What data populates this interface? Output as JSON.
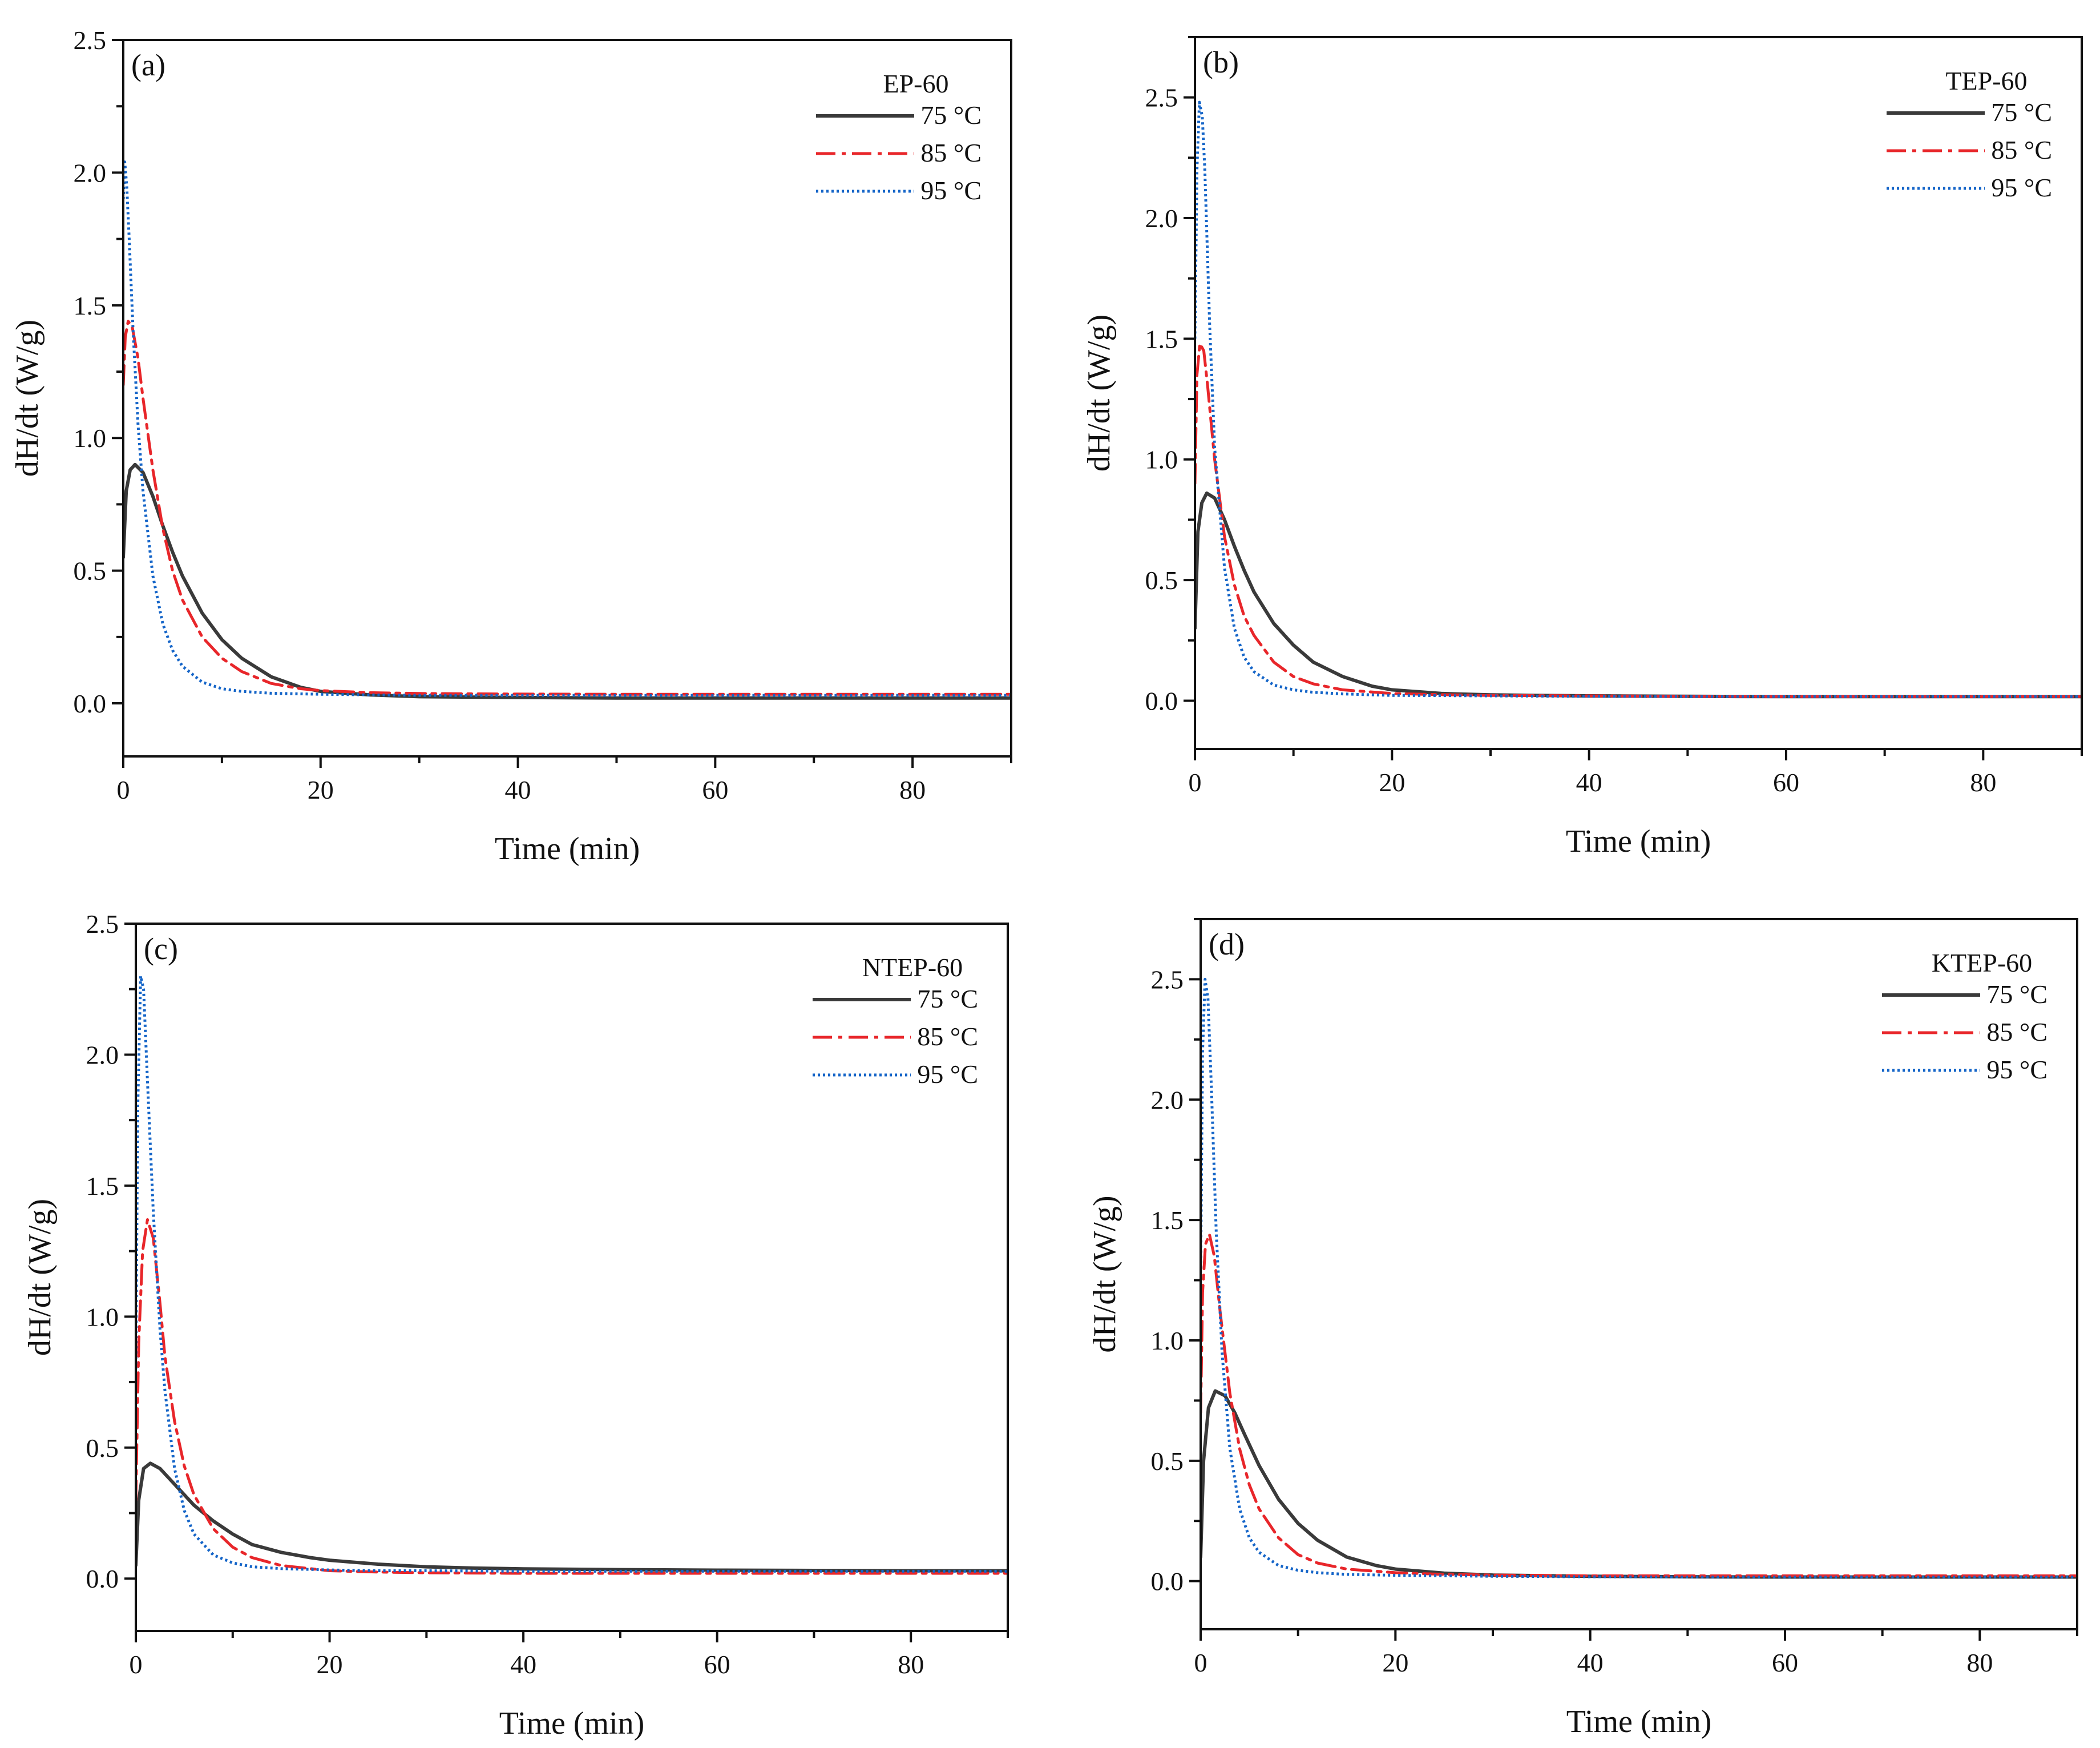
{
  "colors": {
    "t75": "#3a3a3a",
    "t85": "#e8262a",
    "t95": "#1565c8",
    "axis": "#111111"
  },
  "chart_data": [
    {
      "type": "line",
      "panel_label": "(a)",
      "legend_title": "EP-60",
      "xlabel": "Time (min)",
      "ylabel": "dH/dt (W/g)",
      "xlim": [
        0,
        90
      ],
      "ylim": [
        -0.2,
        2.5
      ],
      "xticks": [
        0,
        20,
        40,
        60,
        80
      ],
      "yticks": [
        0.0,
        0.5,
        1.0,
        1.5,
        2.0,
        2.5
      ],
      "ytick_labels": [
        "0.0",
        "0.5",
        "1.0",
        "1.5",
        "2.0",
        "2.5"
      ],
      "series": [
        {
          "name": "75 °C",
          "style": "solid",
          "color": "#3a3a3a",
          "x": [
            0,
            0.3,
            0.7,
            1.2,
            2,
            3,
            4,
            5,
            6,
            8,
            10,
            12,
            15,
            18,
            20,
            25,
            30,
            40,
            50,
            60,
            70,
            80,
            90
          ],
          "y": [
            0.55,
            0.8,
            0.88,
            0.9,
            0.87,
            0.78,
            0.67,
            0.57,
            0.48,
            0.34,
            0.24,
            0.17,
            0.1,
            0.06,
            0.045,
            0.032,
            0.025,
            0.022,
            0.02,
            0.02,
            0.02,
            0.02,
            0.02
          ]
        },
        {
          "name": "85 °C",
          "style": "dashdot",
          "color": "#e8262a",
          "x": [
            0,
            0.2,
            0.5,
            0.9,
            1.5,
            2,
            3,
            4,
            5,
            6,
            8,
            10,
            12,
            15,
            18,
            20,
            25,
            30,
            40,
            50,
            60,
            70,
            80,
            90
          ],
          "y": [
            1.2,
            1.38,
            1.44,
            1.42,
            1.3,
            1.15,
            0.88,
            0.66,
            0.5,
            0.39,
            0.25,
            0.17,
            0.12,
            0.075,
            0.055,
            0.048,
            0.04,
            0.037,
            0.035,
            0.034,
            0.034,
            0.034,
            0.034,
            0.034
          ]
        },
        {
          "name": "95 °C",
          "style": "dotted",
          "color": "#1565c8",
          "x": [
            0,
            0.15,
            0.35,
            0.6,
            1,
            1.5,
            2,
            3,
            4,
            5,
            6,
            8,
            10,
            12,
            15,
            20,
            25,
            30,
            40,
            50,
            60,
            70,
            80,
            90
          ],
          "y": [
            1.9,
            2.04,
            1.95,
            1.75,
            1.4,
            1.05,
            0.8,
            0.48,
            0.3,
            0.2,
            0.14,
            0.08,
            0.055,
            0.045,
            0.038,
            0.034,
            0.032,
            0.03,
            0.03,
            0.03,
            0.03,
            0.03,
            0.03,
            0.03
          ]
        }
      ]
    },
    {
      "type": "line",
      "panel_label": "(b)",
      "legend_title": "TEP-60",
      "xlabel": "Time (min)",
      "ylabel": "dH/dt (W/g)",
      "xlim": [
        0,
        90
      ],
      "ylim": [
        -0.2,
        2.75
      ],
      "xticks": [
        0,
        20,
        40,
        60,
        80
      ],
      "yticks": [
        0.0,
        0.5,
        1.0,
        1.5,
        2.0,
        2.5
      ],
      "ytick_labels": [
        "0.0",
        "0.5",
        "1.0",
        "1.5",
        "2.0",
        "2.5"
      ],
      "series": [
        {
          "name": "75 °C",
          "style": "solid",
          "color": "#3a3a3a",
          "x": [
            0,
            0.3,
            0.7,
            1.2,
            2,
            3,
            4,
            5,
            6,
            8,
            10,
            12,
            15,
            18,
            20,
            25,
            30,
            40,
            50,
            60,
            70,
            80,
            90
          ],
          "y": [
            0.3,
            0.7,
            0.82,
            0.86,
            0.84,
            0.75,
            0.64,
            0.54,
            0.45,
            0.32,
            0.23,
            0.16,
            0.1,
            0.06,
            0.045,
            0.03,
            0.024,
            0.02,
            0.018,
            0.017,
            0.017,
            0.017,
            0.017
          ]
        },
        {
          "name": "85 °C",
          "style": "dashdot",
          "color": "#e8262a",
          "x": [
            0,
            0.2,
            0.5,
            0.9,
            1.3,
            2,
            3,
            4,
            5,
            6,
            8,
            10,
            12,
            15,
            20,
            25,
            30,
            40,
            50,
            60,
            70,
            80,
            90
          ],
          "y": [
            0.9,
            1.35,
            1.48,
            1.45,
            1.3,
            1.0,
            0.68,
            0.48,
            0.35,
            0.27,
            0.16,
            0.1,
            0.07,
            0.045,
            0.03,
            0.025,
            0.022,
            0.02,
            0.018,
            0.017,
            0.017,
            0.017,
            0.017
          ]
        },
        {
          "name": "95 °C",
          "style": "dotted",
          "color": "#1565c8",
          "x": [
            0,
            0.2,
            0.45,
            0.75,
            1,
            1.5,
            2,
            3,
            4,
            5,
            6,
            8,
            10,
            12,
            15,
            20,
            30,
            40,
            50,
            60,
            70,
            80,
            90
          ],
          "y": [
            1.5,
            2.2,
            2.48,
            2.42,
            2.2,
            1.55,
            1.05,
            0.55,
            0.3,
            0.18,
            0.12,
            0.065,
            0.045,
            0.035,
            0.028,
            0.022,
            0.02,
            0.018,
            0.017,
            0.017,
            0.017,
            0.017,
            0.017
          ]
        }
      ]
    },
    {
      "type": "line",
      "panel_label": "(c)",
      "legend_title": "NTEP-60",
      "xlabel": "Time (min)",
      "ylabel": "dH/dt (W/g)",
      "xlim": [
        0,
        90
      ],
      "ylim": [
        -0.2,
        2.5
      ],
      "xticks": [
        0,
        20,
        40,
        60,
        80
      ],
      "yticks": [
        0.0,
        0.5,
        1.0,
        1.5,
        2.0,
        2.5
      ],
      "ytick_labels": [
        "0.0",
        "0.5",
        "1.0",
        "1.5",
        "2.0",
        "2.5"
      ],
      "series": [
        {
          "name": "75 °C",
          "style": "solid",
          "color": "#3a3a3a",
          "x": [
            0,
            0.3,
            0.8,
            1.5,
            2.5,
            4,
            6,
            8,
            10,
            12,
            15,
            18,
            20,
            25,
            30,
            35,
            40,
            50,
            60,
            70,
            80,
            90
          ],
          "y": [
            0.05,
            0.3,
            0.42,
            0.44,
            0.42,
            0.36,
            0.28,
            0.22,
            0.17,
            0.13,
            0.1,
            0.08,
            0.07,
            0.055,
            0.045,
            0.04,
            0.037,
            0.034,
            0.032,
            0.031,
            0.03,
            0.03
          ]
        },
        {
          "name": "85 °C",
          "style": "dashdot",
          "color": "#e8262a",
          "x": [
            0,
            0.3,
            0.7,
            1.2,
            1.8,
            2.5,
            3,
            4,
            5,
            6,
            8,
            10,
            12,
            15,
            20,
            25,
            30,
            40,
            50,
            60,
            70,
            80,
            90
          ],
          "y": [
            0.3,
            0.9,
            1.25,
            1.37,
            1.3,
            1.05,
            0.85,
            0.6,
            0.43,
            0.32,
            0.19,
            0.12,
            0.08,
            0.05,
            0.03,
            0.025,
            0.022,
            0.02,
            0.02,
            0.02,
            0.02,
            0.02,
            0.02
          ]
        },
        {
          "name": "95 °C",
          "style": "dotted",
          "color": "#1565c8",
          "x": [
            0,
            0.2,
            0.5,
            0.8,
            1.2,
            1.8,
            2.5,
            3,
            4,
            5,
            6,
            8,
            10,
            12,
            15,
            20,
            25,
            30,
            40,
            50,
            60,
            70,
            80,
            90
          ],
          "y": [
            0.8,
            1.8,
            2.3,
            2.25,
            1.9,
            1.4,
            0.95,
            0.72,
            0.42,
            0.26,
            0.17,
            0.09,
            0.06,
            0.045,
            0.038,
            0.033,
            0.03,
            0.03,
            0.028,
            0.028,
            0.028,
            0.028,
            0.028,
            0.028
          ]
        }
      ]
    },
    {
      "type": "line",
      "panel_label": "(d)",
      "legend_title": "KTEP-60",
      "xlabel": "Time (min)",
      "ylabel": "dH/dt (W/g)",
      "xlim": [
        0,
        90
      ],
      "ylim": [
        -0.2,
        2.75
      ],
      "xticks": [
        0,
        20,
        40,
        60,
        80
      ],
      "yticks": [
        0.0,
        0.5,
        1.0,
        1.5,
        2.0,
        2.5
      ],
      "ytick_labels": [
        "0.0",
        "0.5",
        "1.0",
        "1.5",
        "2.0",
        "2.5"
      ],
      "series": [
        {
          "name": "75 °C",
          "style": "solid",
          "color": "#3a3a3a",
          "x": [
            0,
            0.3,
            0.8,
            1.5,
            2.5,
            3.5,
            4.5,
            6,
            8,
            10,
            12,
            15,
            18,
            20,
            25,
            30,
            40,
            50,
            60,
            70,
            80,
            90
          ],
          "y": [
            0.1,
            0.5,
            0.72,
            0.79,
            0.77,
            0.7,
            0.61,
            0.48,
            0.34,
            0.24,
            0.17,
            0.1,
            0.065,
            0.05,
            0.033,
            0.025,
            0.02,
            0.018,
            0.017,
            0.017,
            0.017,
            0.017
          ]
        },
        {
          "name": "85 °C",
          "style": "dashdot",
          "color": "#e8262a",
          "x": [
            0,
            0.2,
            0.5,
            0.9,
            1.4,
            2,
            3,
            4,
            5,
            6,
            8,
            10,
            12,
            15,
            20,
            25,
            30,
            40,
            50,
            60,
            70,
            80,
            90
          ],
          "y": [
            0.7,
            1.2,
            1.4,
            1.44,
            1.35,
            1.12,
            0.78,
            0.55,
            0.4,
            0.3,
            0.18,
            0.11,
            0.075,
            0.05,
            0.035,
            0.028,
            0.025,
            0.022,
            0.022,
            0.022,
            0.022,
            0.022,
            0.022
          ]
        },
        {
          "name": "95 °C",
          "style": "dotted",
          "color": "#1565c8",
          "x": [
            0,
            0.2,
            0.45,
            0.75,
            1.1,
            1.6,
            2.2,
            3,
            4,
            5,
            6,
            8,
            10,
            12,
            15,
            20,
            30,
            40,
            50,
            60,
            70,
            80,
            90
          ],
          "y": [
            1.3,
            2.2,
            2.5,
            2.42,
            2.05,
            1.45,
            0.95,
            0.55,
            0.3,
            0.18,
            0.12,
            0.065,
            0.045,
            0.035,
            0.028,
            0.024,
            0.02,
            0.018,
            0.017,
            0.017,
            0.017,
            0.017,
            0.017
          ]
        }
      ]
    }
  ]
}
